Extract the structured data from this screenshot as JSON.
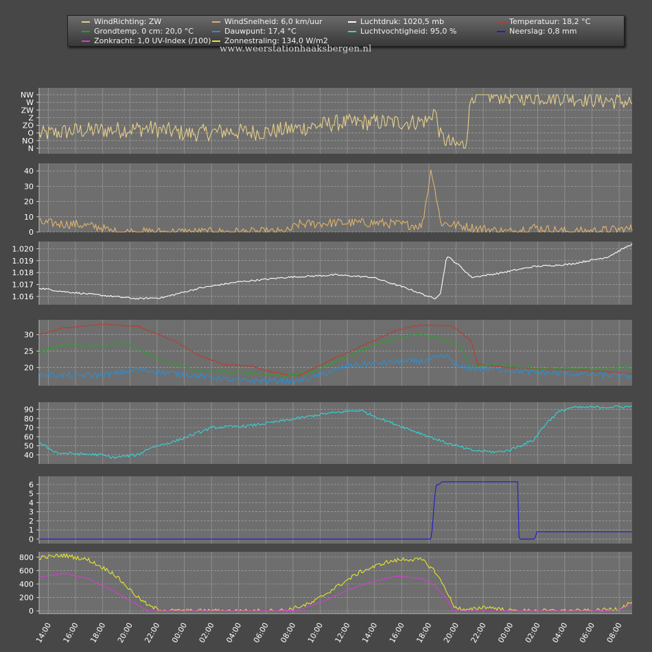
{
  "legend": [
    {
      "text": "WindRichting: ZW",
      "color": "#e8d08a"
    },
    {
      "text": "WindSnelheid: 6,0 km/uur",
      "color": "#e0b46c"
    },
    {
      "text": "Luchtdruk: 1020,5 mb",
      "color": "#ffffff"
    },
    {
      "text": "Temperatuur: 18,2 °C",
      "color": "#c0392b"
    },
    {
      "text": "Grondtemp. 0 cm: 20,0 °C",
      "color": "#2e9e2e"
    },
    {
      "text": "Dauwpunt: 17,4 °C",
      "color": "#2a8fd6"
    },
    {
      "text": "Luchtvochtigheid: 95,0 %",
      "color": "#33d6d6"
    },
    {
      "text": "Neerslag: 0,8 mm",
      "color": "#1a1ad6"
    },
    {
      "text": "Zonkracht: 1,0 UV-Index (/100)",
      "color": "#d63cd6"
    },
    {
      "text": "Zonnestraling: 134,0 W/m2",
      "color": "#e6e62e"
    }
  ],
  "watermark": "www.weerstationhaaksbergen.nl",
  "chart_data": {
    "type": "line",
    "x": [
      "14:00",
      "16:00",
      "18:00",
      "20:00",
      "22:00",
      "00:00",
      "02:00",
      "04:00",
      "06:00",
      "08:00",
      "10:00",
      "12:00",
      "14:00",
      "16:00",
      "18:00",
      "20:00",
      "22:00",
      "00:00",
      "02:00",
      "04:00",
      "06:00",
      "08:00"
    ],
    "panels": [
      {
        "name": "WindRichting",
        "categorical_axis": [
          "N",
          "NO",
          "O",
          "ZO",
          "Z",
          "ZW",
          "W",
          "NW"
        ],
        "series": [
          {
            "name": "WindRichting",
            "color": "#e8d08a",
            "knots": [
              [
                0,
                1.8
              ],
              [
                6,
                2.3
              ],
              [
                12,
                2.4
              ],
              [
                18,
                2.6
              ],
              [
                24,
                1.9
              ],
              [
                30,
                2.2
              ],
              [
                36,
                2.1
              ],
              [
                42,
                2.6
              ],
              [
                48,
                3.3
              ],
              [
                54,
                3.4
              ],
              [
                60,
                3.4
              ],
              [
                63,
                3.6
              ],
              [
                64,
                5.1
              ],
              [
                65,
                1.5
              ],
              [
                67,
                0.4
              ],
              [
                69,
                0.4
              ],
              [
                70,
                7.0
              ],
              [
                72,
                6.9
              ],
              [
                78,
                6.7
              ],
              [
                84,
                6.7
              ],
              [
                90,
                6.4
              ],
              [
                96,
                6.0
              ]
            ],
            "jitter": 1.1
          }
        ]
      },
      {
        "name": "WindSnelheid",
        "ylim": [
          0,
          45
        ],
        "ticks": [
          0,
          10,
          20,
          30,
          40
        ],
        "series": [
          {
            "name": "WindSnelheid",
            "color": "#e0b46c",
            "knots": [
              [
                0,
                6
              ],
              [
                6,
                5
              ],
              [
                10,
                3
              ],
              [
                12,
                0
              ],
              [
                20,
                0
              ],
              [
                30,
                0
              ],
              [
                40,
                0
              ],
              [
                42,
                5
              ],
              [
                48,
                6
              ],
              [
                55,
                6
              ],
              [
                62,
                4
              ],
              [
                63.5,
                42
              ],
              [
                65,
                6
              ],
              [
                70,
                3
              ],
              [
                76,
                0
              ],
              [
                80,
                3
              ],
              [
                86,
                0
              ],
              [
                96,
                2
              ]
            ],
            "jitter": 3.0
          }
        ]
      },
      {
        "name": "Luchtdruk",
        "ylim": [
          1015.3,
          1020.6
        ],
        "ticks": [
          1016,
          1017,
          1018,
          1019,
          1020
        ],
        "tick_labels": [
          "1.016",
          "1.017",
          "1.018",
          "1.019",
          "1.020"
        ],
        "series": [
          {
            "name": "Luchtdruk",
            "color": "#ffffff",
            "knots": [
              [
                0,
                1016.7
              ],
              [
                4,
                1016.4
              ],
              [
                10,
                1016.1
              ],
              [
                16,
                1015.8
              ],
              [
                20,
                1015.9
              ],
              [
                26,
                1016.7
              ],
              [
                32,
                1017.2
              ],
              [
                40,
                1017.6
              ],
              [
                48,
                1017.8
              ],
              [
                54,
                1017.6
              ],
              [
                60,
                1016.6
              ],
              [
                64,
                1015.8
              ],
              [
                65,
                1016.3
              ],
              [
                66,
                1019.4
              ],
              [
                68,
                1018.6
              ],
              [
                70,
                1017.6
              ],
              [
                74,
                1017.9
              ],
              [
                80,
                1018.5
              ],
              [
                86,
                1018.7
              ],
              [
                92,
                1019.3
              ],
              [
                96,
                1020.4
              ]
            ],
            "jitter": 0.07
          }
        ]
      },
      {
        "name": "Temperatuur",
        "ylim": [
          14.5,
          34.5
        ],
        "ticks": [
          20,
          25,
          30
        ],
        "series": [
          {
            "name": "Temperatuur",
            "color": "#c0392b",
            "knots": [
              [
                0,
                30
              ],
              [
                4,
                32
              ],
              [
                10,
                33.2
              ],
              [
                16,
                32.5
              ],
              [
                22,
                28
              ],
              [
                26,
                23.5
              ],
              [
                30,
                21
              ],
              [
                34,
                20.5
              ],
              [
                38,
                18.5
              ],
              [
                42,
                17.5
              ],
              [
                48,
                23
              ],
              [
                54,
                28
              ],
              [
                58,
                31.5
              ],
              [
                62,
                33
              ],
              [
                67,
                32.5
              ],
              [
                70,
                28
              ],
              [
                71,
                21
              ],
              [
                76,
                20
              ],
              [
                84,
                19.5
              ],
              [
                90,
                19
              ],
              [
                96,
                18.2
              ]
            ],
            "jitter": 0.2
          },
          {
            "name": "Grondtemp. 0 cm",
            "color": "#2e9e2e",
            "knots": [
              [
                0,
                24.5
              ],
              [
                4,
                27
              ],
              [
                10,
                26.5
              ],
              [
                14,
                27.5
              ],
              [
                16,
                25.5
              ],
              [
                20,
                22
              ],
              [
                26,
                19
              ],
              [
                34,
                18.5
              ],
              [
                40,
                17.5
              ],
              [
                44,
                18.5
              ],
              [
                50,
                23.5
              ],
              [
                54,
                26.5
              ],
              [
                58,
                29
              ],
              [
                62,
                30.5
              ],
              [
                68,
                27
              ],
              [
                70,
                20
              ],
              [
                74,
                21
              ],
              [
                80,
                19.8
              ],
              [
                90,
                19.5
              ],
              [
                96,
                20
              ]
            ],
            "jitter": 0.5
          },
          {
            "name": "Dauwpunt",
            "color": "#2a8fd6",
            "knots": [
              [
                0,
                18
              ],
              [
                6,
                17.5
              ],
              [
                12,
                18
              ],
              [
                16,
                19.5
              ],
              [
                20,
                18.5
              ],
              [
                26,
                17.5
              ],
              [
                32,
                16
              ],
              [
                38,
                16
              ],
              [
                42,
                16
              ],
              [
                46,
                18
              ],
              [
                50,
                20.5
              ],
              [
                56,
                21.5
              ],
              [
                62,
                22
              ],
              [
                66,
                23.5
              ],
              [
                68,
                20
              ],
              [
                74,
                19.5
              ],
              [
                80,
                18.5
              ],
              [
                88,
                18
              ],
              [
                96,
                17.4
              ]
            ],
            "jitter": 0.9
          }
        ]
      },
      {
        "name": "Luchtvochtigheid",
        "ylim": [
          30,
          98
        ],
        "ticks": [
          40,
          50,
          60,
          70,
          80,
          90
        ],
        "series": [
          {
            "name": "Luchtvochtigheid",
            "color": "#33d6d6",
            "knots": [
              [
                0,
                53
              ],
              [
                3,
                42
              ],
              [
                10,
                40
              ],
              [
                12,
                37
              ],
              [
                16,
                40
              ],
              [
                18,
                48
              ],
              [
                22,
                55
              ],
              [
                28,
                70
              ],
              [
                34,
                72
              ],
              [
                40,
                78
              ],
              [
                46,
                85
              ],
              [
                50,
                88
              ],
              [
                52,
                89
              ],
              [
                56,
                78
              ],
              [
                60,
                68
              ],
              [
                66,
                53
              ],
              [
                70,
                45
              ],
              [
                74,
                43
              ],
              [
                76,
                45
              ],
              [
                80,
                56
              ],
              [
                82,
                74
              ],
              [
                84,
                87
              ],
              [
                86,
                92
              ],
              [
                96,
                93
              ],
              [
                110,
                95
              ]
            ],
            "jitter": 1.5
          }
        ]
      },
      {
        "name": "Neerslag",
        "ylim": [
          -0.5,
          6.9
        ],
        "ticks": [
          0,
          1,
          2,
          3,
          4,
          5,
          6
        ],
        "series": [
          {
            "name": "Neerslag",
            "color": "#1a1ad6",
            "knots": [
              [
                0,
                0
              ],
              [
                63.5,
                0
              ],
              [
                64.2,
                5.9
              ],
              [
                65,
                6.1
              ],
              [
                65.2,
                6.3
              ],
              [
                77.5,
                6.3
              ],
              [
                77.7,
                0
              ],
              [
                80.3,
                0
              ],
              [
                80.5,
                0.8
              ],
              [
                96,
                0.8
              ]
            ],
            "jitter": 0
          }
        ]
      },
      {
        "name": "Zonnestraling",
        "ylim": [
          -40,
          880
        ],
        "ticks": [
          0,
          200,
          400,
          600,
          800
        ],
        "series": [
          {
            "name": "Zonnestraling",
            "color": "#e6e62e",
            "knots": [
              [
                0,
                790
              ],
              [
                4,
                830
              ],
              [
                8,
                760
              ],
              [
                12,
                560
              ],
              [
                14,
                380
              ],
              [
                16,
                200
              ],
              [
                18,
                60
              ],
              [
                20,
                10
              ],
              [
                22,
                0
              ],
              [
                36,
                0
              ],
              [
                40,
                10
              ],
              [
                44,
                110
              ],
              [
                48,
                350
              ],
              [
                52,
                580
              ],
              [
                56,
                720
              ],
              [
                59,
                770
              ],
              [
                62,
                760
              ],
              [
                64,
                600
              ],
              [
                66,
                300
              ],
              [
                67,
                80
              ],
              [
                69,
                0
              ],
              [
                72,
                60
              ],
              [
                74,
                40
              ],
              [
                76,
                0
              ],
              [
                90,
                0
              ],
              [
                94,
                40
              ],
              [
                96,
                134
              ]
            ],
            "jitter": 30
          },
          {
            "name": "Zonkracht",
            "color": "#d63cd6",
            "knots": [
              [
                0,
                500
              ],
              [
                4,
                560
              ],
              [
                8,
                480
              ],
              [
                12,
                300
              ],
              [
                14,
                190
              ],
              [
                16,
                90
              ],
              [
                17,
                30
              ],
              [
                18,
                0
              ],
              [
                38,
                0
              ],
              [
                42,
                10
              ],
              [
                46,
                140
              ],
              [
                50,
                310
              ],
              [
                54,
                440
              ],
              [
                58,
                520
              ],
              [
                62,
                480
              ],
              [
                64,
                380
              ],
              [
                66,
                180
              ],
              [
                67,
                0
              ],
              [
                90,
                0
              ],
              [
                94,
                20
              ],
              [
                96,
                100
              ]
            ],
            "jitter": 0
          }
        ]
      }
    ],
    "grid": true
  }
}
